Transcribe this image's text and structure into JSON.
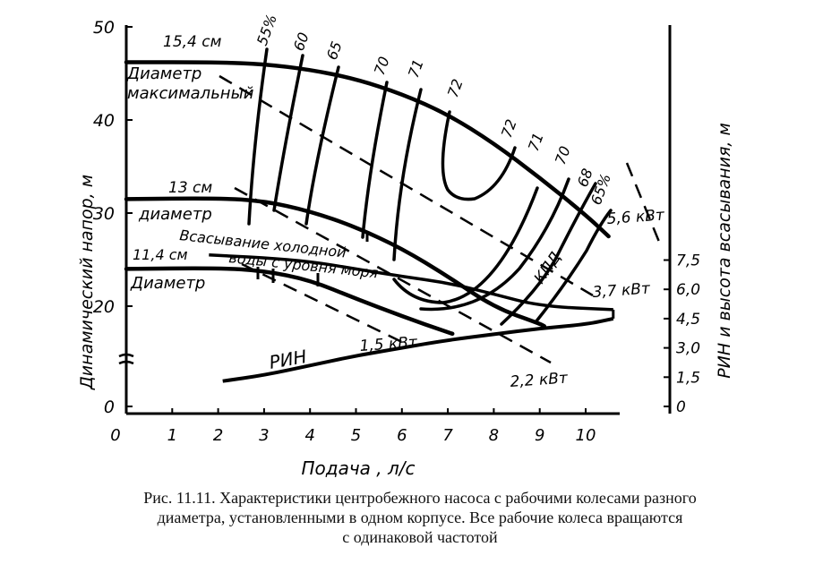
{
  "chart_data": {
    "type": "line",
    "xlabel": "Подача , л/с",
    "ylabel_left": "Динамический напор, м",
    "ylabel_right": "РИН и высота всасывания, м",
    "xlim": [
      0,
      11
    ],
    "ylim_left": [
      0,
      50
    ],
    "ylim_right": [
      0,
      7.5
    ],
    "x_ticks": [
      "0",
      "1",
      "2",
      "3",
      "4",
      "5",
      "6",
      "7",
      "8",
      "9",
      "10"
    ],
    "y_ticks_left": [
      "0",
      "20",
      "30",
      "40",
      "50"
    ],
    "y_ticks_right": [
      "0",
      "1,5",
      "3,0",
      "4,5",
      "6,0",
      "7,5"
    ],
    "axis_break": true,
    "head_curves": [
      {
        "name": "Диаметр максимальный",
        "size": "15,4 см",
        "points": [
          [
            0,
            46.2
          ],
          [
            2,
            46.2
          ],
          [
            3,
            46.0
          ],
          [
            4,
            45.4
          ],
          [
            5,
            44.4
          ],
          [
            6,
            42.8
          ],
          [
            7,
            40.6
          ],
          [
            8,
            37.5
          ],
          [
            9,
            33.8
          ],
          [
            10,
            29.8
          ],
          [
            10.5,
            27.5
          ]
        ]
      },
      {
        "name": "диаметр",
        "size": "13 см",
        "points": [
          [
            0,
            31.5
          ],
          [
            2,
            31.6
          ],
          [
            3,
            31.3
          ],
          [
            4,
            30.2
          ],
          [
            5,
            28.5
          ],
          [
            6,
            26.2
          ],
          [
            7,
            23.2
          ],
          [
            8,
            19.8
          ],
          [
            9,
            16.5
          ],
          [
            9.1,
            16
          ]
        ]
      },
      {
        "name": "Диаметр",
        "size": "11,4 см",
        "points": [
          [
            0,
            24.0
          ],
          [
            2,
            24.1
          ],
          [
            3,
            23.8
          ],
          [
            4,
            22.8
          ],
          [
            5,
            20.8
          ],
          [
            6,
            18.0
          ],
          [
            7,
            14.8
          ],
          [
            7.1,
            14.5
          ]
        ]
      }
    ],
    "efficiency_labels": [
      "55%",
      "60",
      "65",
      "70",
      "71",
      "72",
      "72",
      "71",
      "70",
      "68",
      "65%"
    ],
    "efficiency_curve_label": "КПД",
    "power_labels": [
      "5,6 кВт",
      "3,7 кВт",
      "2,2 кВт",
      "1,5 кВт"
    ],
    "suction_curve": {
      "name": "Всасывание холодной воды с уровня моря",
      "points": [
        [
          1.8,
          25.5
        ],
        [
          3,
          25.2
        ],
        [
          4,
          24.8
        ],
        [
          5,
          24.0
        ],
        [
          6,
          23.2
        ],
        [
          7,
          22.5
        ],
        [
          8,
          21.3
        ],
        [
          9,
          20.0
        ],
        [
          10.6,
          19.3
        ]
      ]
    },
    "npsh_curve": {
      "name": "РИН",
      "points": [
        [
          2.1,
          1.3
        ],
        [
          3,
          1.6
        ],
        [
          4,
          2.1
        ],
        [
          5,
          2.6
        ],
        [
          6,
          3.0
        ],
        [
          7,
          3.4
        ],
        [
          8,
          3.7
        ],
        [
          9,
          4.0
        ],
        [
          10,
          4.2
        ],
        [
          10.6,
          4.5
        ]
      ]
    }
  },
  "caption": {
    "line1": "Рис. 11.11. Характеристики центробежного насоса с рабочими колесами разного",
    "line2": "диаметра, установленными в одном корпусе. Все рабочие колеса вращаются",
    "line3": "с одинаковой частотой"
  }
}
